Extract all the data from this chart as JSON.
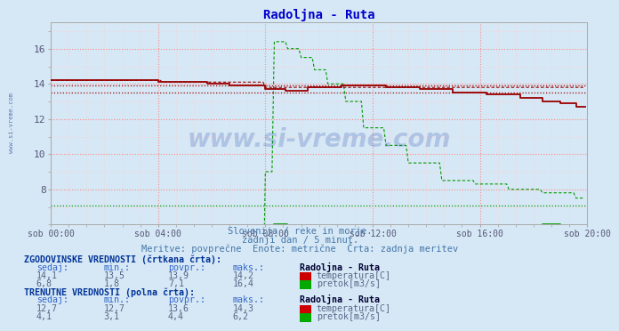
{
  "title": "Radoljna - Ruta",
  "bg_color": "#d6e8f5",
  "title_color": "#0000cc",
  "grid_color_major": "#ff8888",
  "grid_color_minor": "#ffcccc",
  "x_tick_labels": [
    "sob 00:00",
    "sob 04:00",
    "sob 08:00",
    "sob 12:00",
    "sob 16:00",
    "sob 20:00"
  ],
  "x_tick_positions": [
    0,
    48,
    96,
    144,
    192,
    240
  ],
  "ylim_min": 6.0,
  "ylim_max": 17.5,
  "yticks": [
    8,
    10,
    12,
    14,
    16
  ],
  "tick_color": "#555577",
  "subtitle1": "Slovenija / reke in morje.",
  "subtitle2": "zadnji dan / 5 minut.",
  "subtitle3": "Meritve: povprečne  Enote: metrične  Črta: zadnja meritev",
  "subtitle_color": "#4477aa",
  "watermark": "www.si-vreme.com",
  "total_points": 240,
  "temp_color": "#990000",
  "flow_color": "#009900",
  "temp_avg_hline": 13.9,
  "temp_min_hline": 13.5,
  "flow_avg_hline": 7.1,
  "flow_min_hline": 1.8,
  "hist_sedaj_temp": "14,1",
  "hist_min_temp": "13,5",
  "hist_avg_temp": "13,9",
  "hist_max_temp": "14,2",
  "hist_sedaj_flow": "6,8",
  "hist_min_flow": "1,8",
  "hist_avg_flow": "7,1",
  "hist_max_flow": "16,4",
  "cur_sedaj_temp": "12,7",
  "cur_min_temp": "12,7",
  "cur_avg_temp": "13,6",
  "cur_max_temp": "14,3",
  "cur_sedaj_flow": "4,1",
  "cur_min_flow": "3,1",
  "cur_avg_flow": "4,4",
  "cur_max_flow": "6,2"
}
